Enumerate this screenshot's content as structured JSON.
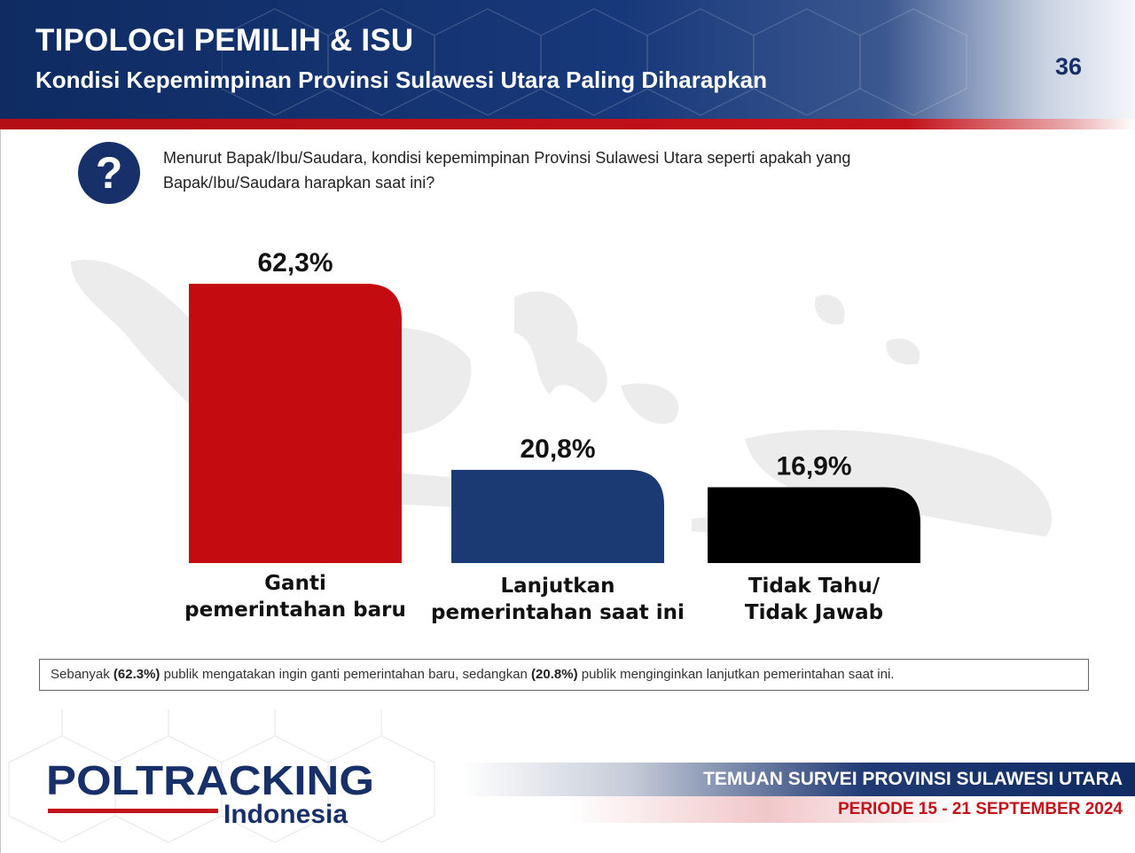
{
  "header": {
    "title": "TIPOLOGI PEMILIH & ISU",
    "subtitle": "Kondisi Kepemimpinan Provinsi Sulawesi Utara Paling Diharapkan",
    "page_number": "36"
  },
  "question": {
    "icon": "question-icon",
    "text": "Menurut Bapak/Ibu/Saudara, kondisi kepemimpinan Provinsi Sulawesi Utara seperti apakah yang Bapak/Ibu/Saudara harapkan saat ini?"
  },
  "chart_data": {
    "type": "bar",
    "categories": [
      "Ganti pemerintahan baru",
      "Lanjutkan pemerintahan saat ini",
      "Tidak Tahu/ Tidak Jawab"
    ],
    "category_lines": [
      [
        "Ganti",
        "pemerintahan baru"
      ],
      [
        "Lanjutkan",
        "pemerintahan saat ini"
      ],
      [
        "Tidak Tahu/",
        "Tidak Jawab"
      ]
    ],
    "values": [
      62.3,
      20.8,
      16.9
    ],
    "data_labels": [
      "62,3%",
      "20,8%",
      "16,9%"
    ],
    "colors": [
      "#c40c10",
      "#1b3a73",
      "#000000"
    ],
    "ylim": [
      0,
      62.3
    ],
    "grid": false,
    "legend": "none"
  },
  "note": {
    "prefix": "Sebanyak ",
    "value1": "(62.3%)",
    "middle": " publik mengatakan ingin ganti pemerintahan baru, sedangkan ",
    "value2": "(20.8%)",
    "suffix": " publik menginginkan lanjutkan pemerintahan saat ini."
  },
  "footer": {
    "logo_main": "POLTRACKING",
    "logo_sub": "Indonesia",
    "survey_title": "TEMUAN SURVEI PROVINSI SULAWESI UTARA",
    "period": "PERIODE 15 - 21 SEPTEMBER 2024"
  },
  "colors": {
    "navy": "#17306a",
    "red": "#c4121a"
  }
}
